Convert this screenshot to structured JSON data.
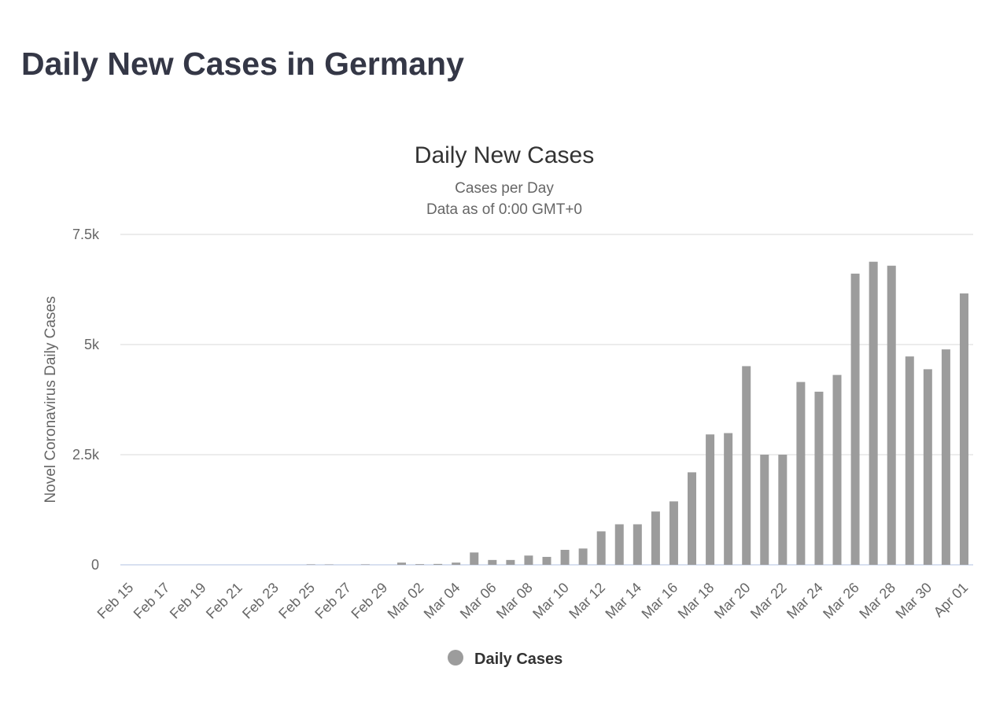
{
  "page": {
    "title": "Daily New Cases in Germany"
  },
  "colors": {
    "bar": "#9c9c9c",
    "grid": "#e6e6e6",
    "baseline": "#ccd6eb",
    "title": "#343746"
  },
  "chart_data": {
    "type": "bar",
    "title": "Daily New Cases",
    "subtitle_lines": [
      "Cases per Day",
      "Data as of 0:00 GMT+0"
    ],
    "xlabel": "",
    "ylabel": "Novel Coronavirus Daily Cases",
    "ylim": [
      0,
      7500
    ],
    "yticks": [
      0,
      2500,
      5000,
      7500
    ],
    "ytick_labels": [
      "0",
      "2.5k",
      "5k",
      "7.5k"
    ],
    "grid": true,
    "legend": {
      "position": "bottom-center"
    },
    "categories": [
      "Feb 15",
      "Feb 16",
      "Feb 17",
      "Feb 18",
      "Feb 19",
      "Feb 20",
      "Feb 21",
      "Feb 22",
      "Feb 23",
      "Feb 24",
      "Feb 25",
      "Feb 26",
      "Feb 27",
      "Feb 28",
      "Feb 29",
      "Mar 01",
      "Mar 02",
      "Mar 03",
      "Mar 04",
      "Mar 05",
      "Mar 06",
      "Mar 07",
      "Mar 08",
      "Mar 09",
      "Mar 10",
      "Mar 11",
      "Mar 12",
      "Mar 13",
      "Mar 14",
      "Mar 15",
      "Mar 16",
      "Mar 17",
      "Mar 18",
      "Mar 19",
      "Mar 20",
      "Mar 21",
      "Mar 22",
      "Mar 23",
      "Mar 24",
      "Mar 25",
      "Mar 26",
      "Mar 27",
      "Mar 28",
      "Mar 29",
      "Mar 30",
      "Mar 31",
      "Apr 01"
    ],
    "x_tick_labels": [
      "Feb 15",
      "Feb 17",
      "Feb 19",
      "Feb 21",
      "Feb 23",
      "Feb 25",
      "Feb 27",
      "Feb 29",
      "Mar 02",
      "Mar 04",
      "Mar 06",
      "Mar 08",
      "Mar 10",
      "Mar 12",
      "Mar 14",
      "Mar 16",
      "Mar 18",
      "Mar 20",
      "Mar 22",
      "Mar 24",
      "Mar 26",
      "Mar 28",
      "Mar 30",
      "Apr 01"
    ],
    "series": [
      {
        "name": "Daily Cases",
        "values": [
          0,
          0,
          0,
          0,
          0,
          0,
          0,
          0,
          0,
          0,
          10,
          8,
          0,
          10,
          0,
          50,
          15,
          20,
          50,
          280,
          110,
          110,
          210,
          180,
          340,
          370,
          760,
          920,
          920,
          1210,
          1440,
          2100,
          2960,
          2990,
          4510,
          2500,
          2500,
          4150,
          3930,
          4310,
          6610,
          6880,
          6790,
          4730,
          4440,
          4890,
          6160
        ]
      }
    ]
  }
}
